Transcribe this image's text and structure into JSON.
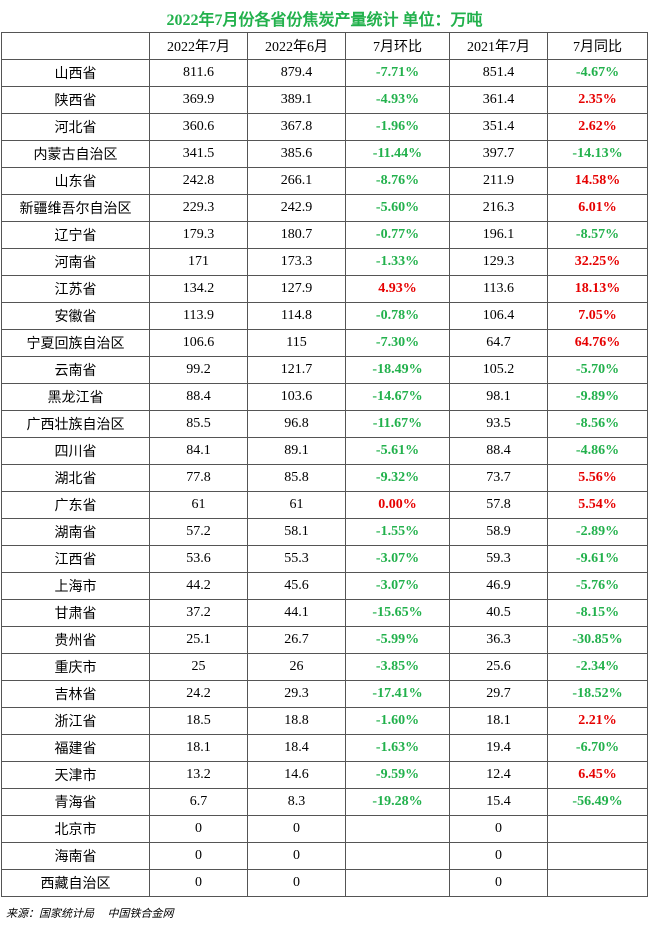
{
  "title": "2022年7月份各省份焦炭产量统计    单位：万吨",
  "headers": [
    "",
    "2022年7月",
    "2022年6月",
    "7月环比",
    "2021年7月",
    "7月同比"
  ],
  "rows": [
    {
      "province": "山西省",
      "jul2022": "811.6",
      "jun2022": "879.4",
      "mom": "-7.71%",
      "jul2021": "851.4",
      "yoy": "-4.67%"
    },
    {
      "province": "陕西省",
      "jul2022": "369.9",
      "jun2022": "389.1",
      "mom": "-4.93%",
      "jul2021": "361.4",
      "yoy": "2.35%"
    },
    {
      "province": "河北省",
      "jul2022": "360.6",
      "jun2022": "367.8",
      "mom": "-1.96%",
      "jul2021": "351.4",
      "yoy": "2.62%"
    },
    {
      "province": "内蒙古自治区",
      "jul2022": "341.5",
      "jun2022": "385.6",
      "mom": "-11.44%",
      "jul2021": "397.7",
      "yoy": "-14.13%"
    },
    {
      "province": "山东省",
      "jul2022": "242.8",
      "jun2022": "266.1",
      "mom": "-8.76%",
      "jul2021": "211.9",
      "yoy": "14.58%"
    },
    {
      "province": "新疆维吾尔自治区",
      "jul2022": "229.3",
      "jun2022": "242.9",
      "mom": "-5.60%",
      "jul2021": "216.3",
      "yoy": "6.01%"
    },
    {
      "province": "辽宁省",
      "jul2022": "179.3",
      "jun2022": "180.7",
      "mom": "-0.77%",
      "jul2021": "196.1",
      "yoy": "-8.57%"
    },
    {
      "province": "河南省",
      "jul2022": "171",
      "jun2022": "173.3",
      "mom": "-1.33%",
      "jul2021": "129.3",
      "yoy": "32.25%"
    },
    {
      "province": "江苏省",
      "jul2022": "134.2",
      "jun2022": "127.9",
      "mom": "4.93%",
      "jul2021": "113.6",
      "yoy": "18.13%"
    },
    {
      "province": "安徽省",
      "jul2022": "113.9",
      "jun2022": "114.8",
      "mom": "-0.78%",
      "jul2021": "106.4",
      "yoy": "7.05%"
    },
    {
      "province": "宁夏回族自治区",
      "jul2022": "106.6",
      "jun2022": "115",
      "mom": "-7.30%",
      "jul2021": "64.7",
      "yoy": "64.76%"
    },
    {
      "province": "云南省",
      "jul2022": "99.2",
      "jun2022": "121.7",
      "mom": "-18.49%",
      "jul2021": "105.2",
      "yoy": "-5.70%"
    },
    {
      "province": "黑龙江省",
      "jul2022": "88.4",
      "jun2022": "103.6",
      "mom": "-14.67%",
      "jul2021": "98.1",
      "yoy": "-9.89%"
    },
    {
      "province": "广西壮族自治区",
      "jul2022": "85.5",
      "jun2022": "96.8",
      "mom": "-11.67%",
      "jul2021": "93.5",
      "yoy": "-8.56%"
    },
    {
      "province": "四川省",
      "jul2022": "84.1",
      "jun2022": "89.1",
      "mom": "-5.61%",
      "jul2021": "88.4",
      "yoy": "-4.86%"
    },
    {
      "province": "湖北省",
      "jul2022": "77.8",
      "jun2022": "85.8",
      "mom": "-9.32%",
      "jul2021": "73.7",
      "yoy": "5.56%"
    },
    {
      "province": "广东省",
      "jul2022": "61",
      "jun2022": "61",
      "mom": "0.00%",
      "jul2021": "57.8",
      "yoy": "5.54%"
    },
    {
      "province": "湖南省",
      "jul2022": "57.2",
      "jun2022": "58.1",
      "mom": "-1.55%",
      "jul2021": "58.9",
      "yoy": "-2.89%"
    },
    {
      "province": "江西省",
      "jul2022": "53.6",
      "jun2022": "55.3",
      "mom": "-3.07%",
      "jul2021": "59.3",
      "yoy": "-9.61%"
    },
    {
      "province": "上海市",
      "jul2022": "44.2",
      "jun2022": "45.6",
      "mom": "-3.07%",
      "jul2021": "46.9",
      "yoy": "-5.76%"
    },
    {
      "province": "甘肃省",
      "jul2022": "37.2",
      "jun2022": "44.1",
      "mom": "-15.65%",
      "jul2021": "40.5",
      "yoy": "-8.15%"
    },
    {
      "province": "贵州省",
      "jul2022": "25.1",
      "jun2022": "26.7",
      "mom": "-5.99%",
      "jul2021": "36.3",
      "yoy": "-30.85%"
    },
    {
      "province": "重庆市",
      "jul2022": "25",
      "jun2022": "26",
      "mom": "-3.85%",
      "jul2021": "25.6",
      "yoy": "-2.34%"
    },
    {
      "province": "吉林省",
      "jul2022": "24.2",
      "jun2022": "29.3",
      "mom": "-17.41%",
      "jul2021": "29.7",
      "yoy": "-18.52%"
    },
    {
      "province": "浙江省",
      "jul2022": "18.5",
      "jun2022": "18.8",
      "mom": "-1.60%",
      "jul2021": "18.1",
      "yoy": "2.21%"
    },
    {
      "province": "福建省",
      "jul2022": "18.1",
      "jun2022": "18.4",
      "mom": "-1.63%",
      "jul2021": "19.4",
      "yoy": "-6.70%"
    },
    {
      "province": "天津市",
      "jul2022": "13.2",
      "jun2022": "14.6",
      "mom": "-9.59%",
      "jul2021": "12.4",
      "yoy": "6.45%"
    },
    {
      "province": "青海省",
      "jul2022": "6.7",
      "jun2022": "8.3",
      "mom": "-19.28%",
      "jul2021": "15.4",
      "yoy": "-56.49%"
    },
    {
      "province": "北京市",
      "jul2022": "0",
      "jun2022": "0",
      "mom": "",
      "jul2021": "0",
      "yoy": ""
    },
    {
      "province": "海南省",
      "jul2022": "0",
      "jun2022": "0",
      "mom": "",
      "jul2021": "0",
      "yoy": ""
    },
    {
      "province": "西藏自治区",
      "jul2022": "0",
      "jun2022": "0",
      "mom": "",
      "jul2021": "0",
      "yoy": ""
    }
  ],
  "source": [
    "来源：国家统计局",
    "中国铁合金网"
  ],
  "colors": {
    "title": "#22b14c",
    "positive": "#e60000",
    "negative": "#22b14c",
    "border": "#555555"
  }
}
